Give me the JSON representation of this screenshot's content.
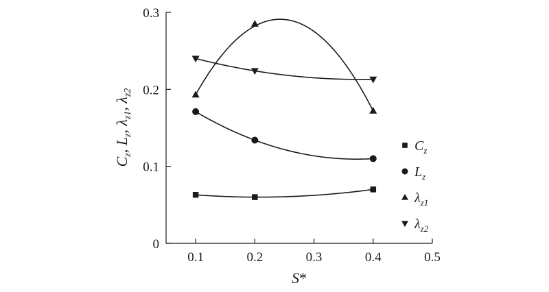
{
  "chart_data": {
    "type": "scatter",
    "xlabel": {
      "main": "S",
      "suffix": "*"
    },
    "ylabel": [
      {
        "main": "C",
        "sub": "z",
        "sep": ", "
      },
      {
        "main": "L",
        "sub": "z",
        "sep": ", "
      },
      {
        "main": "λ",
        "sub": "z1",
        "sep": ", "
      },
      {
        "main": "λ",
        "sub": "z2",
        "sep": ""
      }
    ],
    "xlim": [
      0.05,
      0.5
    ],
    "ylim": [
      0,
      0.3
    ],
    "xticks": [
      0.1,
      0.2,
      0.3,
      0.4,
      0.5
    ],
    "xtick_labels": [
      "0.1",
      "0.2",
      "0.3",
      "0.4",
      "0.5"
    ],
    "yticks": [
      0,
      0.1,
      0.2,
      0.3
    ],
    "ytick_labels": [
      "0",
      "0.1",
      "0.2",
      "0.3"
    ],
    "grid": false,
    "legend_position": "right",
    "x": [
      0.1,
      0.2,
      0.4
    ],
    "series": [
      {
        "key": "cz",
        "label_main": "C",
        "label_sub": "z",
        "marker": "square",
        "values": [
          0.063,
          0.06,
          0.07
        ],
        "fit_peak_x": null
      },
      {
        "key": "lz",
        "label_main": "L",
        "label_sub": "z",
        "marker": "circle",
        "values": [
          0.171,
          0.134,
          0.11
        ],
        "fit_peak_x": null
      },
      {
        "key": "lz1",
        "label_main": "λ",
        "label_sub": "z1",
        "marker": "triangle-up",
        "values": [
          0.193,
          0.285,
          0.172
        ],
        "fit_peak_x": 0.243,
        "fit_peak_y": 0.291
      },
      {
        "key": "lz2",
        "label_main": "λ",
        "label_sub": "z2",
        "marker": "triangle-down",
        "values": [
          0.24,
          0.224,
          0.213
        ],
        "fit_peak_x": null
      }
    ]
  }
}
